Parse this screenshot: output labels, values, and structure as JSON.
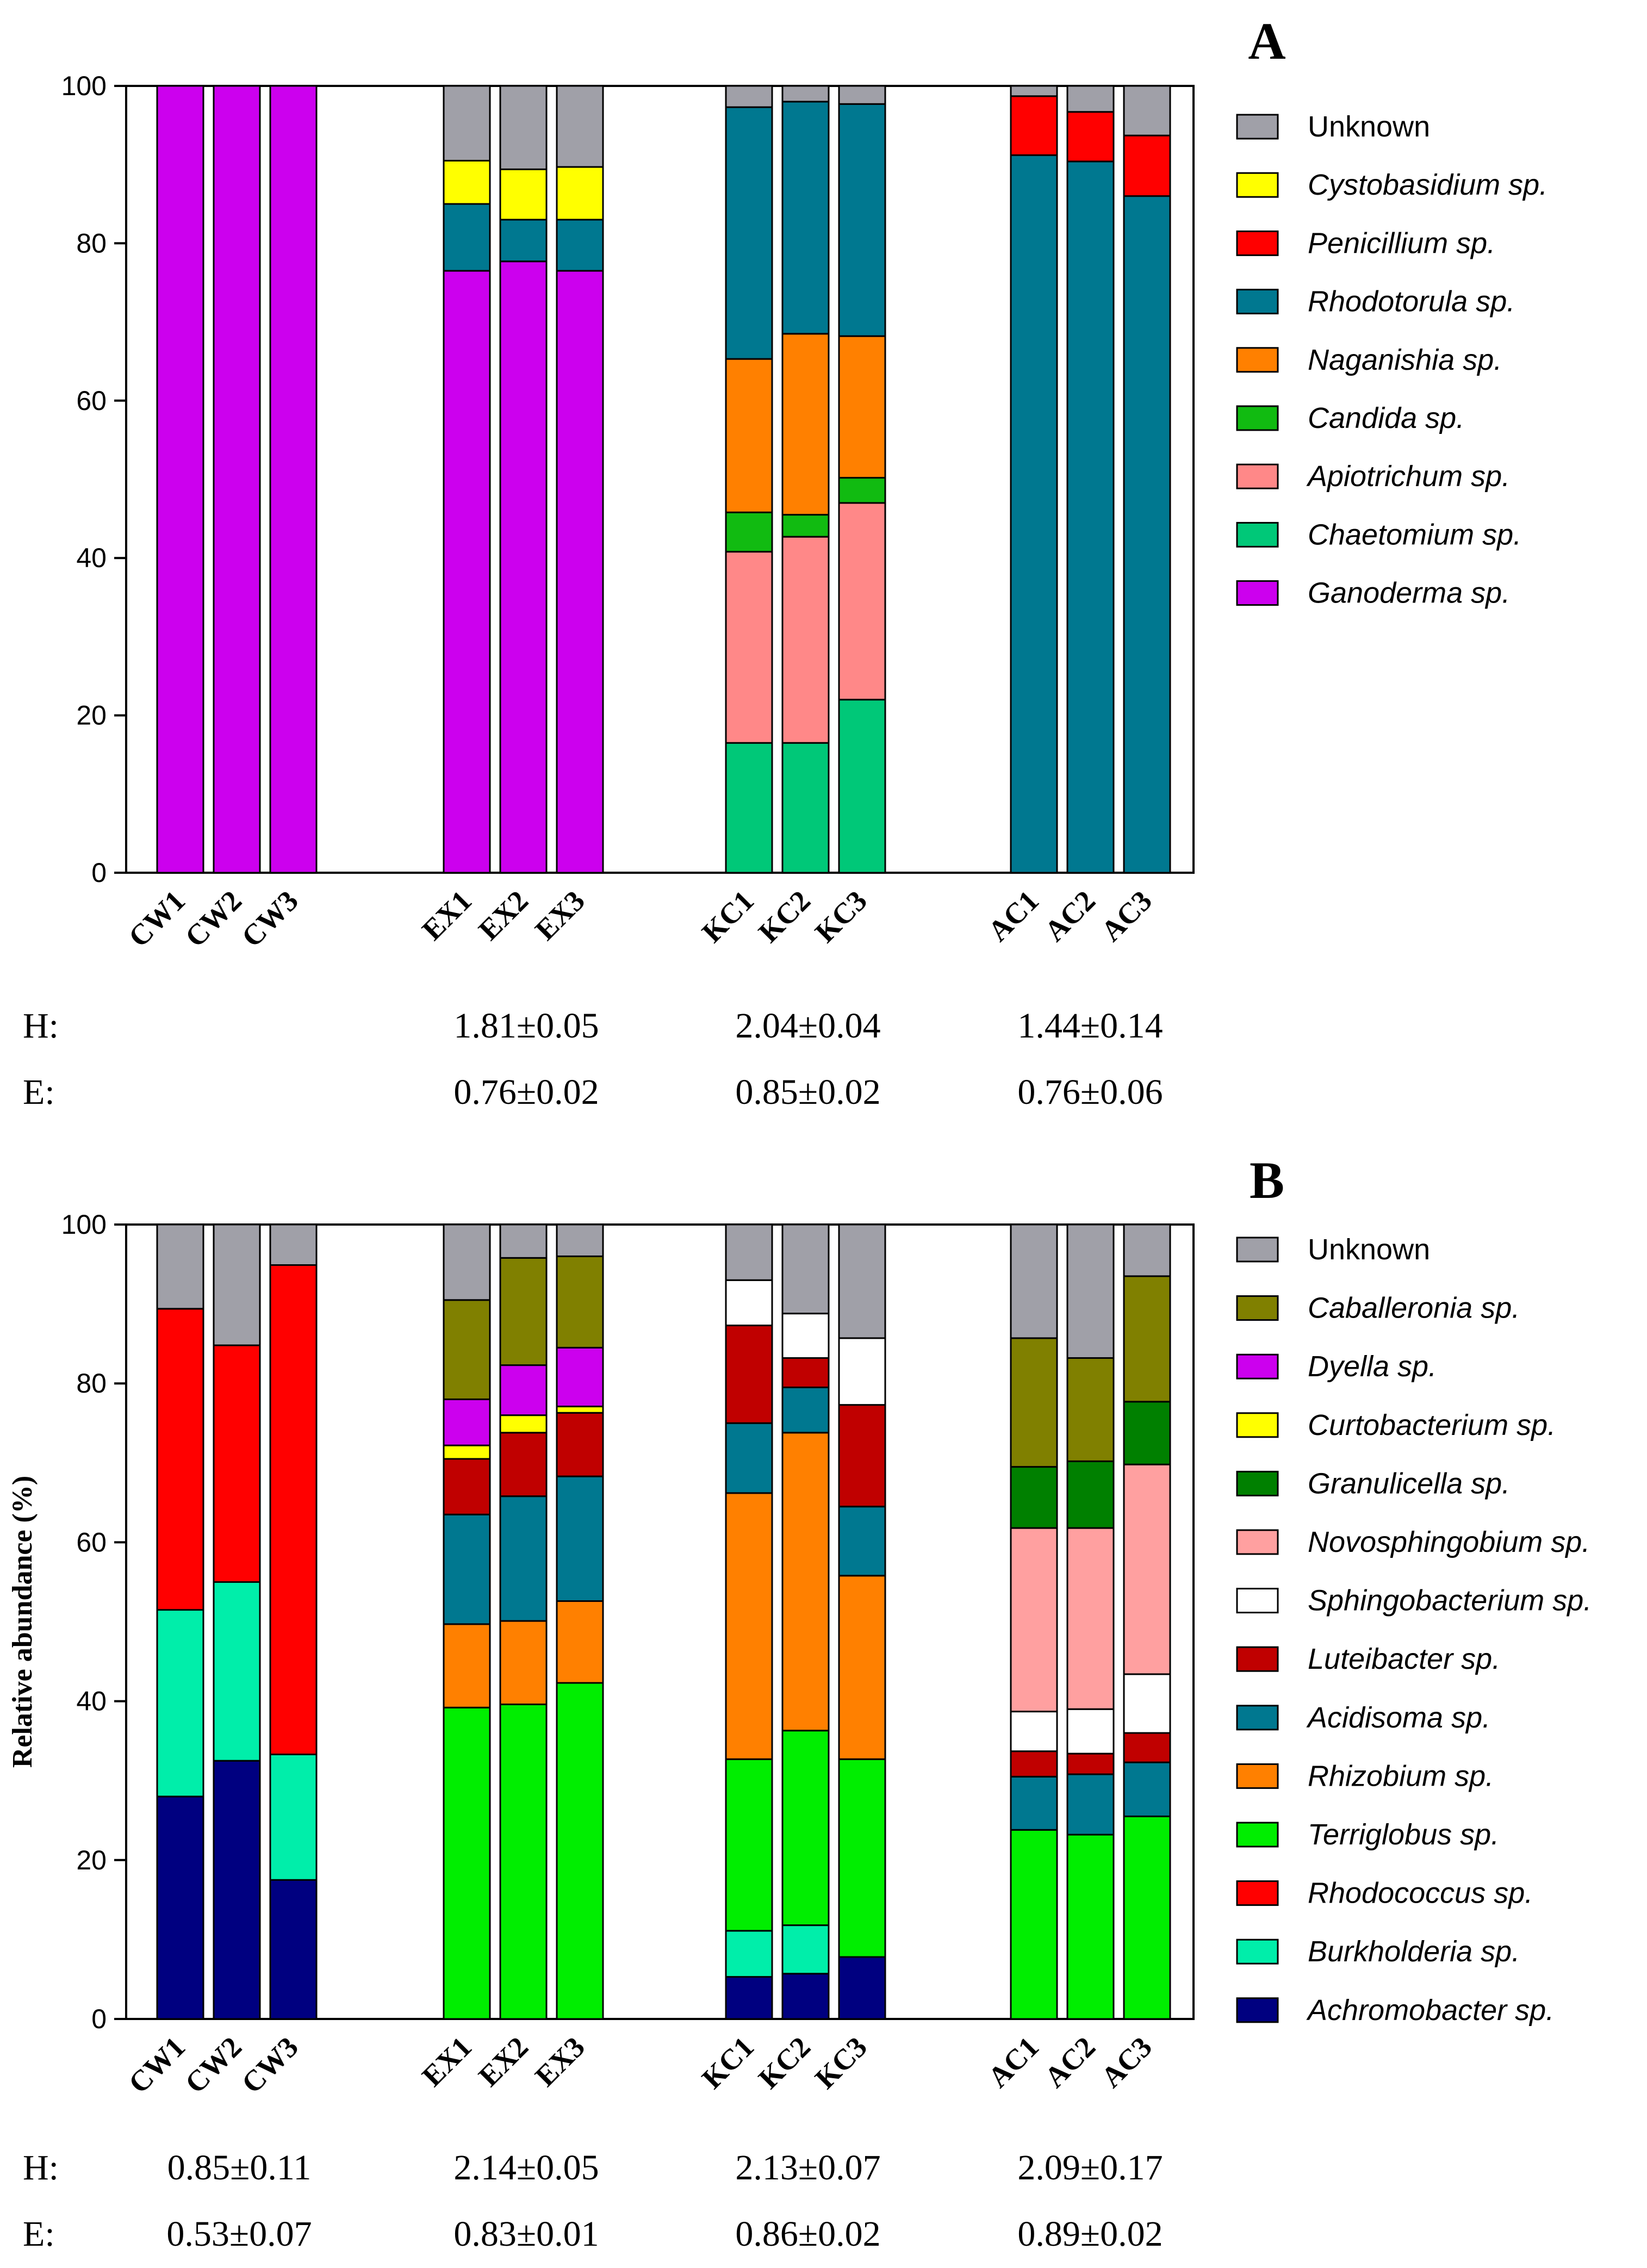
{
  "chart_data": [
    {
      "type": "bar",
      "stacked": true,
      "panel_label": "A",
      "title": "",
      "xlabel": "",
      "ylabel": "",
      "ylim": [
        0,
        100
      ],
      "yticks": [
        "0",
        "20",
        "40",
        "60",
        "80",
        "100"
      ],
      "grid": false,
      "legend_position": "right",
      "categories": [
        "CW1",
        "CW2",
        "CW3",
        "EX1",
        "EX2",
        "EX3",
        "KC1",
        "KC2",
        "KC3",
        "AC1",
        "AC2",
        "AC3"
      ],
      "series": [
        {
          "name": "Ganoderma sp.",
          "color": "#CC00EE",
          "italic": true,
          "values": [
            100,
            100,
            100,
            76.5,
            77.7,
            76.5,
            0,
            0,
            0,
            0,
            0,
            0
          ]
        },
        {
          "name": "Chaetomium sp.",
          "color": "#00C878",
          "italic": true,
          "values": [
            0,
            0,
            0,
            0,
            0,
            0,
            16.5,
            16.5,
            22,
            0,
            0,
            0
          ]
        },
        {
          "name": " Apiotrichum sp.",
          "color": "#FF8888",
          "italic": true,
          "values": [
            0,
            0,
            0,
            0,
            0,
            0,
            24.3,
            26.2,
            25,
            0,
            0,
            0
          ]
        },
        {
          "name": "Candida sp.",
          "color": "#11BB11",
          "italic": true,
          "values": [
            0,
            0,
            0,
            0,
            0,
            0,
            5,
            2.8,
            3.2,
            0,
            0,
            0
          ]
        },
        {
          "name": "Naganishia sp.",
          "color": "#FF8000",
          "italic": true,
          "values": [
            0,
            0,
            0,
            0,
            0,
            0,
            19.5,
            23,
            18,
            0,
            0,
            0
          ]
        },
        {
          "name": "Rhodotorula sp.",
          "color": "#007890",
          "italic": true,
          "values": [
            0,
            0,
            0,
            8.5,
            5.3,
            6.5,
            32,
            29.5,
            29.5,
            91.2,
            90.4,
            86
          ]
        },
        {
          "name": "Penicillium sp.",
          "color": "#FF0000",
          "italic": true,
          "values": [
            0,
            0,
            0,
            0,
            0,
            0,
            0,
            0,
            0,
            7.5,
            6.3,
            7.7
          ]
        },
        {
          "name": "Cystobasidium sp.",
          "color": "#FFFF00",
          "italic": true,
          "values": [
            0,
            0,
            0,
            5.5,
            6.4,
            6.7,
            0,
            0,
            0,
            0,
            0,
            0
          ]
        },
        {
          "name": "Unknown",
          "color": "#A0A0A8",
          "italic": false,
          "values": [
            0,
            0,
            0,
            9.5,
            10.6,
            10.3,
            2.7,
            2,
            2.3,
            1.3,
            3.3,
            6.3
          ]
        }
      ],
      "legend_order": [
        "Unknown",
        "Cystobasidium sp.",
        "Penicillium sp.",
        "Rhodotorula sp.",
        "Naganishia sp.",
        "Candida sp.",
        " Apiotrichum sp.",
        "Chaetomium sp.",
        "Ganoderma sp."
      ],
      "stats": {
        "H": {
          "label": "H:",
          "values": [
            "",
            "1.81±0.05",
            "2.04±0.04",
            "1.44±0.14"
          ]
        },
        "E": {
          "label": "E:",
          "values": [
            "",
            "0.76±0.02",
            "0.85±0.02",
            "0.76±0.06"
          ]
        }
      }
    },
    {
      "type": "bar",
      "stacked": true,
      "panel_label": "B",
      "title": "",
      "xlabel": "",
      "ylabel": "Relative abundance (%)",
      "ylim": [
        0,
        100
      ],
      "yticks": [
        "0",
        "20",
        "40",
        "60",
        "80",
        "100"
      ],
      "grid": false,
      "legend_position": "right",
      "categories": [
        "CW1",
        "CW2",
        "CW3",
        "EX1",
        "EX2",
        "EX3",
        "KC1",
        "KC2",
        "KC3",
        "AC1",
        "AC2",
        "AC3"
      ],
      "series": [
        {
          "name": "Achromobacter sp.",
          "color": "#000080",
          "italic": true,
          "values": [
            28,
            32.5,
            17.5,
            0,
            0,
            0,
            5.3,
            5.7,
            7.8,
            0,
            0,
            0
          ]
        },
        {
          "name": "Burkholderia sp.",
          "color": "#00EEAA",
          "italic": true,
          "values": [
            23.5,
            22.5,
            15.8,
            0,
            0,
            0,
            5.8,
            6.1,
            0,
            0,
            0,
            0
          ]
        },
        {
          "name": "Rhodococcus sp.",
          "color": "#FF0000",
          "italic": true,
          "values": [
            37.9,
            29.8,
            61.6,
            0,
            0,
            0,
            0,
            0,
            0,
            0,
            0,
            0
          ]
        },
        {
          "name": "Terriglobus sp.",
          "color": "#00EE00",
          "italic": true,
          "values": [
            0,
            0,
            0,
            39.2,
            39.6,
            42.3,
            21.6,
            24.5,
            24.9,
            23.8,
            23.2,
            25.5
          ]
        },
        {
          "name": "Rhizobium sp.",
          "color": "#FF8000",
          "italic": true,
          "values": [
            0,
            0,
            0,
            10.5,
            10.5,
            10.3,
            33.5,
            37.5,
            23.1,
            0,
            0,
            0
          ]
        },
        {
          "name": "Acidisoma sp.",
          "color": "#007890",
          "italic": true,
          "values": [
            0,
            0,
            0,
            13.8,
            15.7,
            15.7,
            8.8,
            5.7,
            8.7,
            6.7,
            7.6,
            6.8
          ]
        },
        {
          "name": "Luteibacter sp.",
          "color": "#C00000",
          "italic": true,
          "values": [
            0,
            0,
            0,
            7,
            8,
            8,
            12.3,
            3.7,
            12.8,
            3.2,
            2.6,
            3.7
          ]
        },
        {
          "name": "Sphingobacterium sp.",
          "color": "#FFFFFF",
          "italic": true,
          "values": [
            0,
            0,
            0,
            0,
            0,
            0,
            5.7,
            5.6,
            8.4,
            5,
            5.6,
            7.4
          ]
        },
        {
          "name": "Novosphingobium sp.",
          "color": "#FFA0A0",
          "italic": true,
          "values": [
            0,
            0,
            0,
            0,
            0,
            0,
            0,
            0,
            0,
            23.1,
            22.8,
            26.4
          ]
        },
        {
          "name": "Granulicella sp.",
          "color": "#008000",
          "italic": true,
          "values": [
            0,
            0,
            0,
            0,
            0,
            0,
            0,
            0,
            0,
            7.7,
            8.4,
            7.9
          ]
        },
        {
          "name": "Curtobacterium sp.",
          "color": "#FFFF00",
          "italic": true,
          "values": [
            0,
            0,
            0,
            1.7,
            2.2,
            0.8,
            0,
            0,
            0,
            0,
            0,
            0
          ]
        },
        {
          "name": "Dyella sp.",
          "color": "#CC00EE",
          "italic": true,
          "values": [
            0,
            0,
            0,
            5.8,
            6.3,
            7.4,
            0,
            0,
            0,
            0,
            0,
            0
          ]
        },
        {
          "name": "Caballeronia sp.",
          "color": "#808000",
          "italic": true,
          "values": [
            0,
            0,
            0,
            12.5,
            13.5,
            11.5,
            0,
            0,
            0,
            16.2,
            13,
            15.8
          ]
        },
        {
          "name": "Unknown",
          "color": "#A0A0A8",
          "italic": false,
          "values": [
            10.6,
            15.2,
            5.1,
            9.5,
            4.2,
            4,
            7,
            11.2,
            14.3,
            14.3,
            16.8,
            6.5
          ]
        }
      ],
      "legend_order": [
        "Unknown",
        "Caballeronia sp.",
        "Dyella sp.",
        "Curtobacterium sp.",
        "Granulicella sp.",
        "Novosphingobium sp.",
        "Sphingobacterium sp.",
        "Luteibacter sp.",
        "Acidisoma sp.",
        "Rhizobium sp.",
        "Terriglobus sp.",
        "Rhodococcus sp.",
        "Burkholderia sp.",
        "Achromobacter sp."
      ],
      "stats": {
        "H": {
          "label": "H:",
          "values": [
            "0.85±0.11",
            "2.14±0.05",
            "2.13±0.07",
            "2.09±0.17"
          ]
        },
        "E": {
          "label": "E:",
          "values": [
            "0.53±0.07",
            "0.83±0.01",
            "0.86±0.02",
            "0.89±0.02"
          ]
        }
      }
    }
  ]
}
